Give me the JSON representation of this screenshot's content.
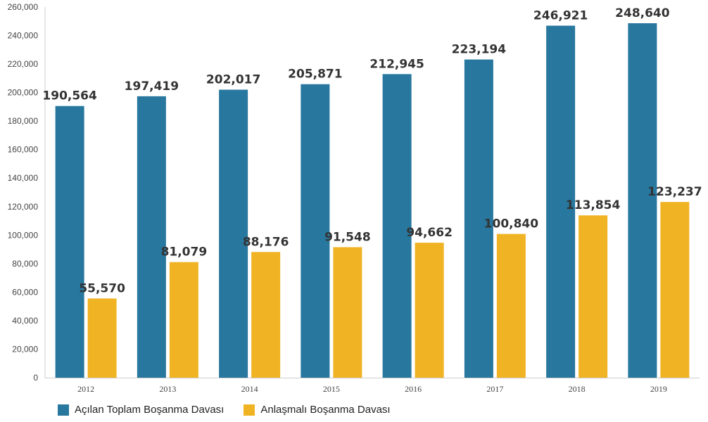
{
  "chart_data": {
    "type": "bar",
    "categories": [
      "2012",
      "2013",
      "2014",
      "2015",
      "2016",
      "2017",
      "2018",
      "2019"
    ],
    "series": [
      {
        "name": "Açılan Toplam Boşanma Davası",
        "color": "#27779f",
        "values": [
          190564,
          197419,
          202017,
          205871,
          212945,
          223194,
          246921,
          248640
        ],
        "labels": [
          "190,564",
          "197,419",
          "202,017",
          "205,871",
          "212,945",
          "223,194",
          "246,921",
          "248,640"
        ]
      },
      {
        "name": "Anlaşmalı Boşanma Davası",
        "color": "#f0b323",
        "values": [
          55570,
          81079,
          88176,
          91548,
          94662,
          100840,
          113854,
          123237
        ],
        "labels": [
          "55,570",
          "81,079",
          "88,176",
          "91,548",
          "94,662",
          "100,840",
          "113,854",
          "123,237"
        ]
      }
    ],
    "yticks": [
      "0",
      "20,000",
      "40,000",
      "60,000",
      "80,000",
      "100,000",
      "120,000",
      "140,000",
      "160,000",
      "180,000",
      "200,000",
      "220,000",
      "240,000",
      "260,000"
    ],
    "ylim": [
      0,
      260000
    ],
    "grid": false,
    "legend_position": "bottom-left",
    "title": "",
    "xlabel": "",
    "ylabel": ""
  }
}
